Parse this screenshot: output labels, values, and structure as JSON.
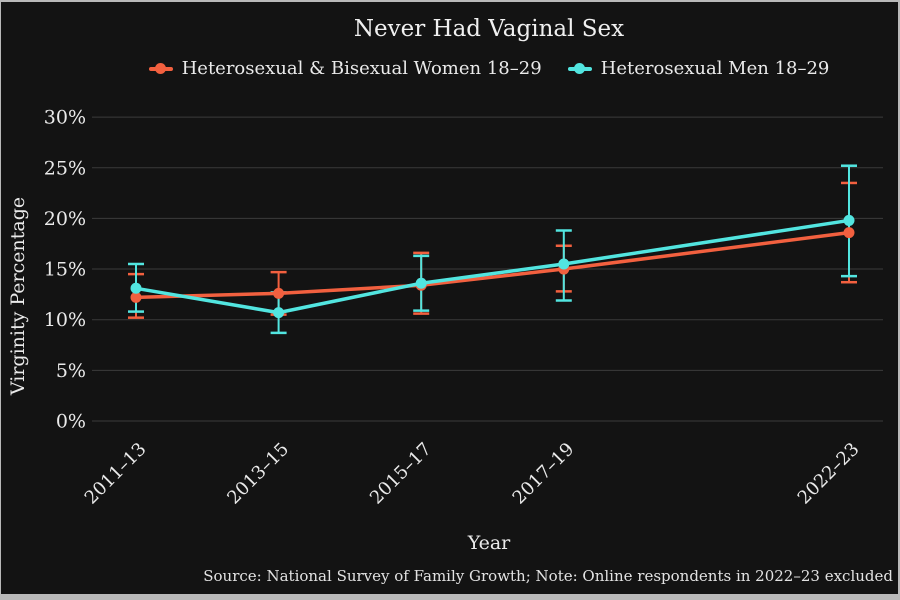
{
  "title": "Never Had Vaginal Sex",
  "footer": {
    "source_note": "Source: National Survey of Family Growth; Note: Online respondents in 2022–23 excluded"
  },
  "colors": {
    "background": "#131313",
    "frame": "#b9b9b9",
    "grid": "#3b3b3b",
    "text": "#eaeaea",
    "women_series": "#f2603f",
    "men_series": "#52e5e0"
  },
  "chart_data": {
    "type": "line",
    "title": "Never Had Vaginal Sex",
    "xlabel": "Year",
    "ylabel": "Virginity Percentage",
    "note": "Source: National Survey of Family Growth; Note: Online respondents in 2022–23 excluded",
    "categories": [
      "2011–13",
      "2013–15",
      "2015–17",
      "2017–19",
      "2022–23"
    ],
    "x_numeric": [
      2012,
      2014,
      2016,
      2018,
      2022
    ],
    "yticks": [
      "0%",
      "5%",
      "10%",
      "15%",
      "20%",
      "25%",
      "30%"
    ],
    "ytick_values": [
      0,
      5,
      10,
      15,
      20,
      25,
      30
    ],
    "ylim": [
      0,
      32
    ],
    "grid": true,
    "legend_position": "top",
    "error_bars": true,
    "grid_color": "#3b3b3b",
    "text_color": "#eaeaea",
    "series": [
      {
        "name": "Heterosexual & Bisexual Women 18–29",
        "color": "#f2603f",
        "values": [
          12.2,
          12.6,
          13.4,
          15.0,
          18.6
        ],
        "ci_low": [
          10.2,
          10.5,
          10.6,
          12.8,
          13.7
        ],
        "ci_high": [
          14.5,
          14.7,
          16.6,
          17.3,
          23.5
        ]
      },
      {
        "name": "Heterosexual Men 18–29",
        "color": "#52e5e0",
        "values": [
          13.1,
          10.7,
          13.6,
          15.5,
          19.8
        ],
        "ci_low": [
          10.8,
          8.7,
          10.9,
          11.9,
          14.3
        ],
        "ci_high": [
          15.5,
          12.7,
          16.3,
          18.8,
          25.2
        ]
      }
    ]
  }
}
